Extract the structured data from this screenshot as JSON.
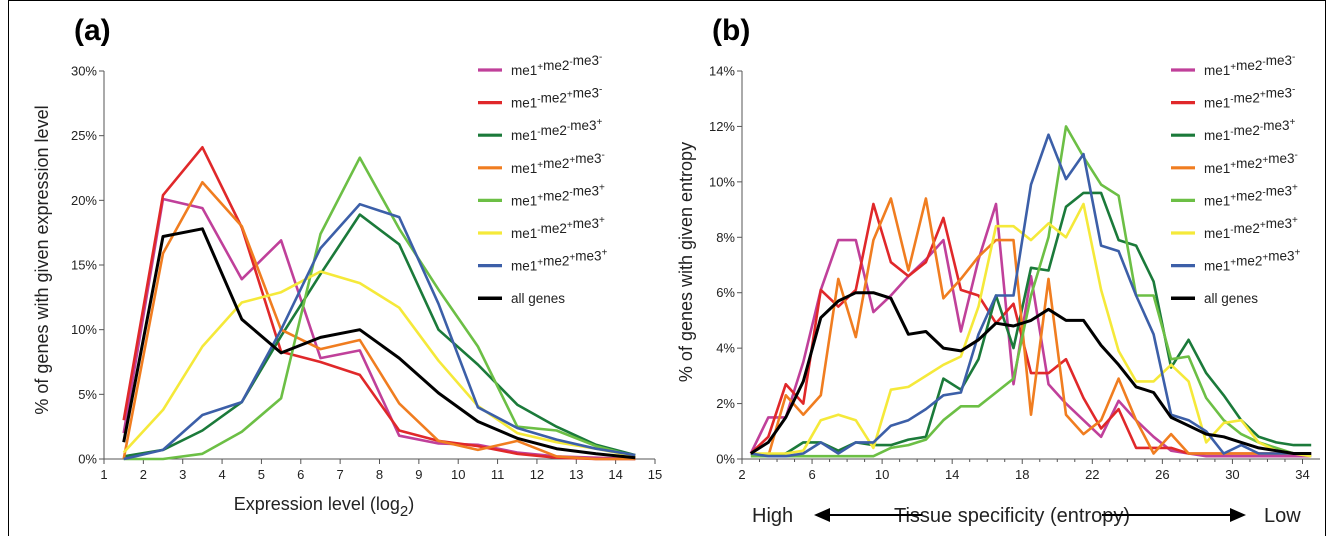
{
  "chart_data": [
    {
      "panel": "(a)",
      "type": "line",
      "xlabel": "Expression level (log",
      "xlabel_sub": "2",
      "xlabel_close": ")",
      "ylabel": "% of genes with given expression level",
      "xlim": [
        1,
        15
      ],
      "ylim": [
        0,
        30
      ],
      "x_ticks": [
        "1",
        "2",
        "3",
        "4",
        "5",
        "6",
        "7",
        "8",
        "9",
        "10",
        "11",
        "12",
        "13",
        "14",
        "15"
      ],
      "y_ticks": [
        "0%",
        "5%",
        "10%",
        "15%",
        "20%",
        "25%",
        "30%"
      ],
      "x": [
        1.5,
        2.5,
        3.5,
        4.5,
        5.5,
        6.5,
        7.5,
        8.5,
        9.5,
        10.5,
        11.5,
        12.5,
        13.5,
        14.5
      ],
      "legend": "right",
      "series": [
        {
          "name": "me1+me2-me3-",
          "color": "#c0409a",
          "values": [
            2.0,
            20.1,
            19.4,
            13.9,
            16.9,
            7.8,
            8.4,
            1.8,
            1.2,
            1.1,
            0.5,
            0.2,
            0.1,
            0.0
          ]
        },
        {
          "name": "me1-me2+me3-",
          "color": "#e0282a",
          "values": [
            3.0,
            20.4,
            24.1,
            17.9,
            8.3,
            7.5,
            6.5,
            2.2,
            1.4,
            1.0,
            0.4,
            0.1,
            0.0,
            0.0
          ]
        },
        {
          "name": "me1-me2-me3+",
          "color": "#1b7a3a",
          "values": [
            0.2,
            0.7,
            2.2,
            4.4,
            9.5,
            14.3,
            18.9,
            16.6,
            10.0,
            7.3,
            4.2,
            2.5,
            1.1,
            0.3
          ]
        },
        {
          "name": "me1+me2+me3-",
          "color": "#f07d20",
          "values": [
            0.0,
            15.9,
            21.4,
            18.0,
            10.0,
            8.5,
            9.2,
            4.3,
            1.4,
            0.7,
            1.4,
            0.2,
            0.0,
            0.0
          ]
        },
        {
          "name": "me1+me2-me3+",
          "color": "#6cbf45",
          "values": [
            0.0,
            0.0,
            0.4,
            2.1,
            4.7,
            17.4,
            23.3,
            17.8,
            13.1,
            8.7,
            2.5,
            2.2,
            1.0,
            0.2
          ]
        },
        {
          "name": "me1-me2+me3+",
          "color": "#f5e93a",
          "values": [
            0.5,
            3.8,
            8.7,
            12.1,
            12.9,
            14.5,
            13.6,
            11.7,
            7.6,
            4.1,
            2.0,
            1.3,
            0.8,
            0.2
          ]
        },
        {
          "name": "me1+me2+me3+",
          "color": "#3c5fa8",
          "values": [
            0.0,
            0.7,
            3.4,
            4.4,
            10.0,
            16.3,
            19.7,
            18.7,
            12.0,
            4.0,
            2.4,
            1.5,
            0.8,
            0.3
          ]
        },
        {
          "name": "all genes",
          "color": "#000000",
          "values": [
            1.3,
            17.2,
            17.8,
            10.8,
            8.2,
            9.4,
            10.0,
            7.8,
            5.1,
            2.9,
            1.6,
            0.8,
            0.4,
            0.1
          ]
        }
      ]
    },
    {
      "panel": "(b)",
      "type": "line",
      "xlabel": "Tissue specificity (entropy)",
      "x_left_label": "High",
      "x_right_label": "Low",
      "ylabel": "% of genes with given entropy",
      "xlim": [
        2,
        35
      ],
      "ylim": [
        0,
        14
      ],
      "x_ticks": [
        "2",
        "6",
        "10",
        "14",
        "18",
        "22",
        "26",
        "30",
        "34"
      ],
      "y_ticks": [
        "0%",
        "2%",
        "4%",
        "6%",
        "8%",
        "10%",
        "12%",
        "14%"
      ],
      "x": [
        2.5,
        3.5,
        4.5,
        5.5,
        6.5,
        7.5,
        8.5,
        9.5,
        10.5,
        11.5,
        12.5,
        13.5,
        14.5,
        15.5,
        16.5,
        17.5,
        18.5,
        19.5,
        20.5,
        21.5,
        22.5,
        23.5,
        24.5,
        25.5,
        26.5,
        27.5,
        28.5,
        29.5,
        30.5,
        31.5,
        32.5,
        33.5,
        34.5
      ],
      "legend": "right",
      "series": [
        {
          "name": "me1+me2-me3-",
          "color": "#c0409a",
          "values": [
            0.2,
            1.5,
            1.5,
            3.5,
            6.1,
            7.9,
            7.9,
            5.3,
            5.9,
            6.6,
            7.2,
            7.9,
            4.6,
            7.2,
            9.2,
            2.7,
            6.6,
            2.7,
            2.0,
            1.4,
            0.8,
            2.1,
            1.4,
            0.8,
            0.3,
            0.2,
            0.1,
            0.1,
            0.1,
            0.1,
            0.1,
            0.1,
            0.1
          ]
        },
        {
          "name": "me1-me2+me3-",
          "color": "#e0282a",
          "values": [
            0.2,
            0.8,
            2.7,
            2.0,
            6.1,
            5.5,
            6.1,
            9.2,
            7.1,
            6.6,
            7.1,
            8.7,
            6.1,
            5.9,
            4.9,
            5.6,
            3.1,
            3.1,
            3.6,
            2.2,
            1.1,
            1.8,
            0.4,
            0.4,
            0.4,
            0.2,
            0.2,
            0.2,
            0.2,
            0.2,
            0.2,
            0.2,
            0.2
          ]
        },
        {
          "name": "me1-me2-me3+",
          "color": "#1b7a3a",
          "values": [
            0.2,
            0.1,
            0.2,
            0.6,
            0.6,
            0.3,
            0.6,
            0.5,
            0.5,
            0.7,
            0.8,
            2.9,
            2.5,
            3.6,
            5.9,
            4.0,
            6.9,
            6.8,
            9.1,
            9.6,
            9.6,
            7.9,
            7.7,
            6.4,
            3.3,
            4.3,
            3.1,
            2.3,
            1.4,
            0.8,
            0.6,
            0.5,
            0.5
          ]
        },
        {
          "name": "me1+me2+me3-",
          "color": "#f07d20",
          "values": [
            0.2,
            0.1,
            2.3,
            1.6,
            2.3,
            6.5,
            4.4,
            7.9,
            9.4,
            6.8,
            9.4,
            5.8,
            6.5,
            7.3,
            7.9,
            7.9,
            1.6,
            6.5,
            1.6,
            0.9,
            1.4,
            2.9,
            1.4,
            0.2,
            0.9,
            0.2,
            0.2,
            0.2,
            0.2,
            0.2,
            0.2,
            0.2,
            0.2
          ]
        },
        {
          "name": "me1+me2-me3+",
          "color": "#6cbf45",
          "values": [
            0.1,
            0.1,
            0.1,
            0.1,
            0.1,
            0.1,
            0.1,
            0.1,
            0.4,
            0.5,
            0.7,
            1.4,
            1.9,
            1.9,
            2.4,
            2.9,
            5.9,
            8.0,
            12.0,
            10.9,
            9.9,
            9.5,
            5.9,
            5.9,
            3.6,
            3.7,
            2.2,
            1.4,
            0.9,
            0.6,
            0.4,
            0.2,
            0.1
          ]
        },
        {
          "name": "me1-me2+me3+",
          "color": "#f5e93a",
          "values": [
            0.2,
            0.2,
            0.2,
            0.3,
            1.4,
            1.6,
            1.4,
            0.4,
            2.5,
            2.6,
            3.0,
            3.4,
            3.7,
            5.5,
            8.4,
            8.4,
            7.9,
            8.5,
            8.0,
            9.2,
            6.1,
            3.9,
            2.8,
            2.8,
            3.4,
            2.8,
            0.6,
            1.3,
            1.4,
            0.6,
            0.3,
            0.2,
            0.1
          ]
        },
        {
          "name": "me1+me2+me3+",
          "color": "#3c5fa8",
          "values": [
            0.2,
            0.1,
            0.1,
            0.2,
            0.6,
            0.2,
            0.6,
            0.6,
            1.2,
            1.4,
            1.8,
            2.3,
            2.4,
            4.5,
            5.9,
            5.9,
            9.9,
            11.7,
            10.1,
            11.0,
            7.7,
            7.5,
            5.9,
            4.5,
            1.6,
            1.4,
            1.0,
            0.2,
            0.5,
            0.2,
            0.2,
            0.2,
            0.2
          ]
        },
        {
          "name": "all genes",
          "color": "#000000",
          "values": [
            0.2,
            0.6,
            1.5,
            2.8,
            5.1,
            5.7,
            6.0,
            6.0,
            5.8,
            4.5,
            4.6,
            4.0,
            3.9,
            4.3,
            4.9,
            4.8,
            5.0,
            5.4,
            5.0,
            5.0,
            4.1,
            3.4,
            2.6,
            2.4,
            1.5,
            1.2,
            0.9,
            0.8,
            0.6,
            0.4,
            0.3,
            0.2,
            0.2
          ]
        }
      ]
    }
  ]
}
